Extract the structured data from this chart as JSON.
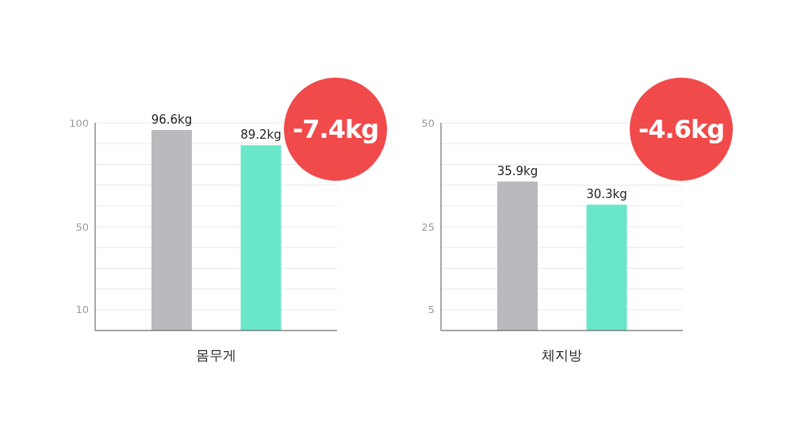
{
  "chart_data": [
    {
      "type": "bar",
      "xlabel": "몸무게",
      "categories": [
        null,
        null
      ],
      "values": [
        96.6,
        89.2
      ],
      "colors": [
        "#b8babd",
        "#6ae6c9"
      ],
      "value_labels": [
        "96.6kg",
        "89.2kg"
      ],
      "ylim": [
        0,
        100
      ],
      "yticks": [
        10,
        {
          "value": 20,
          "label": null
        },
        {
          "value": 30,
          "label": null
        },
        {
          "value": 40,
          "label": null
        },
        50,
        {
          "value": 60,
          "label": null
        },
        {
          "value": 70,
          "label": null
        },
        {
          "value": 80,
          "label": null
        },
        {
          "value": 90,
          "label": null
        },
        100
      ],
      "grid": "y",
      "annotations": [
        "-7.4kg"
      ]
    },
    {
      "type": "bar",
      "xlabel": "체지방",
      "categories": [
        null,
        null
      ],
      "values": [
        35.9,
        30.3
      ],
      "colors": [
        "#b8babd",
        "#6ae6c9"
      ],
      "value_labels": [
        "35.9kg",
        "30.3kg"
      ],
      "ylim": [
        0,
        50
      ],
      "yticks": [
        5,
        {
          "value": 10,
          "label": null
        },
        {
          "value": 15,
          "label": null
        },
        {
          "value": 20,
          "label": null
        },
        25,
        {
          "value": 30,
          "label": null
        },
        {
          "value": 35,
          "label": null
        },
        {
          "value": 40,
          "label": null
        },
        {
          "value": 45,
          "label": null
        },
        50
      ],
      "grid": "y",
      "annotations": [
        "-4.6kg"
      ]
    }
  ]
}
